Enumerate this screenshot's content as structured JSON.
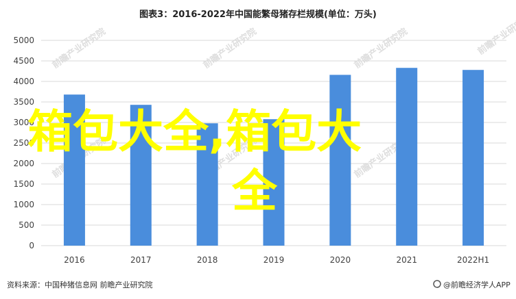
{
  "header": {
    "title": "图表3：2016-2022年中国能繁母猪存栏规模(单位：万头)"
  },
  "footer": {
    "source": "资料来源：中国种猪信息网 前瞻产业研究院",
    "brand": "@前瞻经济学人APP"
  },
  "overlay": {
    "line1": "箱包大全,箱包大",
    "line2": "全"
  },
  "watermark": {
    "text": "前瞻产业研究院"
  },
  "colors": {
    "bar": "#4a8ddc",
    "grid": "#d9d9d9",
    "overlay": "#ffff00"
  },
  "chart_data": {
    "type": "bar",
    "title": "图表3：2016-2022年中国能繁母猪存栏规模(单位：万头)",
    "categories": [
      "2016",
      "2017",
      "2018",
      "2019",
      "2020",
      "2021",
      "2022H1"
    ],
    "values": [
      3680,
      3430,
      2980,
      3080,
      4160,
      4330,
      4280
    ],
    "ylim": [
      0,
      5000
    ],
    "yticks": [
      0,
      500,
      1000,
      1500,
      2000,
      2500,
      3000,
      3500,
      4000,
      4500,
      5000
    ],
    "grid": true,
    "legend": "none"
  }
}
